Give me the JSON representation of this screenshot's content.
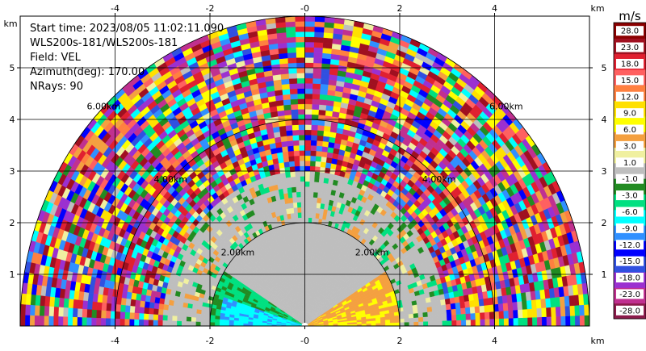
{
  "chart_data": {
    "type": "heatmap",
    "description_lines": [
      "Start time: 2023/08/05 11:02:11.090",
      "WLS200s-181/WLS200s-181",
      "Field: VEL",
      "Azimuth(deg): 170.00",
      "NRays: 90"
    ],
    "xlim": [
      -6,
      6
    ],
    "ylim": [
      0,
      6
    ],
    "x_ticks": [
      -4,
      -2,
      0,
      2,
      4
    ],
    "x_tick_labels": [
      "-4",
      "-2",
      "-0",
      "2",
      "4"
    ],
    "y_ticks": [
      1,
      2,
      3,
      4,
      5
    ],
    "y_tick_labels": [
      "1",
      "2",
      "3",
      "4",
      "5"
    ],
    "axis_unit": "km",
    "range_rings_km": [
      2,
      4,
      6
    ],
    "range_ring_labels": [
      "2.00km",
      "4.00km",
      "6.00km"
    ],
    "max_range_km": 6.0,
    "grid": true,
    "colorbar": {
      "title": "m/s",
      "boundaries": [
        -28.0,
        -23.0,
        -18.0,
        -15.0,
        -12.0,
        -9.0,
        -6.0,
        -3.0,
        -1.0,
        1.0,
        3.0,
        6.0,
        9.0,
        12.0,
        15.0,
        18.0,
        23.0,
        28.0
      ],
      "labels": [
        "-28.0",
        "-23.0",
        "-18.0",
        "-15.0",
        "-12.0",
        "-9.0",
        "-6.0",
        "-3.0",
        "-1.0",
        "1.0",
        "3.0",
        "6.0",
        "9.0",
        "12.0",
        "15.0",
        "18.0",
        "23.0",
        "28.0"
      ],
      "colors": [
        "#8b1a4a",
        "#c03090",
        "#9b30d0",
        "#3050e0",
        "#0000ff",
        "#3090ff",
        "#00ffff",
        "#00e080",
        "#228b22",
        "#bebebe",
        "#f0f0a0",
        "#f4a040",
        "#ffff00",
        "#ffe000",
        "#ff8040",
        "#ff6060",
        "#e02030",
        "#a01020",
        "#8b0000"
      ]
    },
    "regions": [
      {
        "name": "near-field-left-negative",
        "velocity_ms": -8.0
      },
      {
        "name": "near-field-right-positive",
        "velocity_ms": 6.0
      },
      {
        "name": "mid-field-near-zero",
        "velocity_ms": 0.0
      },
      {
        "name": "far-field-noise",
        "velocity_ms": null
      }
    ]
  }
}
